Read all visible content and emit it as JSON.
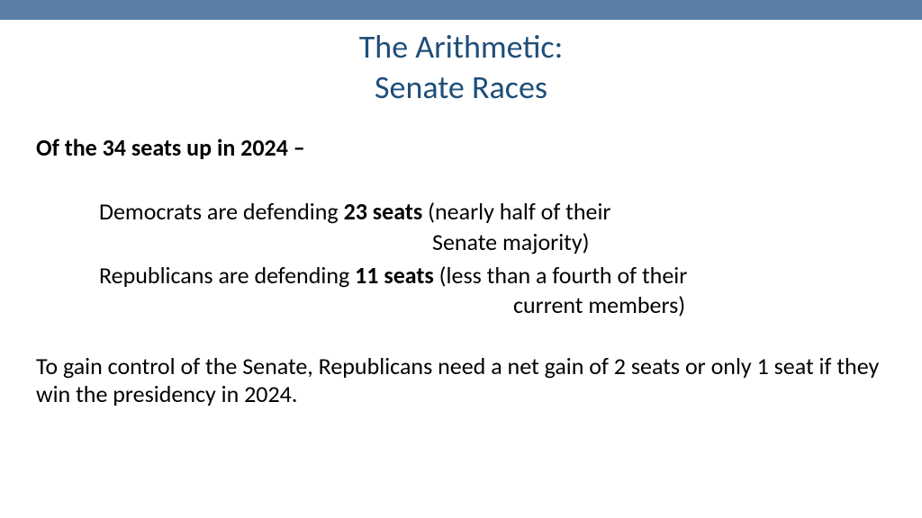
{
  "colors": {
    "bar": "#5b7fa7",
    "title": "#1f4e79",
    "body": "#000000",
    "background": "#ffffff"
  },
  "title": {
    "line1": "The Arithmetic:",
    "line2": "Senate Races"
  },
  "lead": "Of the 34 seats up in 2024 –",
  "dem": {
    "pre": "Democrats are defending ",
    "bold": "23 seats",
    "post": " (nearly half of their",
    "wrap": "Senate majority)"
  },
  "rep": {
    "pre": "Republicans are defending ",
    "bold": "11 seats",
    "post": " (less than a fourth of their",
    "wrap": "current members)"
  },
  "closing": "To gain control of the Senate, Republicans need a net gain of 2 seats or only 1 seat if they win the presidency in 2024."
}
